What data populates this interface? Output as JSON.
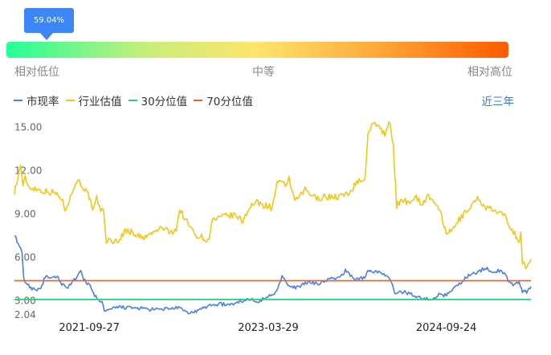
{
  "indicator": {
    "percentile_label": "59.04%",
    "percentile": 0.5904,
    "scale_labels": [
      "相对低位",
      "中等",
      "相对高位"
    ],
    "colors": [
      "#22ff99",
      "#ffe46b",
      "#ff5a00"
    ]
  },
  "legend": {
    "items": [
      {
        "label": "市现率",
        "color": "#4a7ff0"
      },
      {
        "label": "行业估值",
        "color": "#f5c518"
      },
      {
        "label": "30分位值",
        "color": "#27d07d"
      },
      {
        "label": "70分位值",
        "color": "#f2641e"
      }
    ],
    "range_label": "近三年"
  },
  "chart_data": {
    "type": "line",
    "ylim": [
      2.04,
      15.92
    ],
    "yticks": [
      "15.00",
      "12.00",
      "9.00",
      "6.00",
      "3.00",
      "2.04"
    ],
    "xticks": [
      "2021-09-27",
      "2023-03-29",
      "2024-09-24"
    ],
    "xlim": [
      "2021-02-10",
      "2025-06-10"
    ],
    "series": [
      {
        "name": "行业估值",
        "color": "#f5c518",
        "points": [
          [
            "2021-02-10",
            10.6
          ],
          [
            "2021-02-20",
            11.4
          ],
          [
            "2021-03-01",
            12.5
          ],
          [
            "2021-03-08",
            10.8
          ],
          [
            "2021-03-15",
            11.6
          ],
          [
            "2021-03-25",
            10.9
          ],
          [
            "2021-04-10",
            10.8
          ],
          [
            "2021-05-10",
            10.6
          ],
          [
            "2021-06-10",
            10.5
          ],
          [
            "2021-07-01",
            10.2
          ],
          [
            "2021-07-15",
            9.4
          ],
          [
            "2021-08-01",
            10.2
          ],
          [
            "2021-08-20",
            11.4
          ],
          [
            "2021-09-05",
            11.0
          ],
          [
            "2021-09-27",
            10.2
          ],
          [
            "2021-10-08",
            9.1
          ],
          [
            "2021-10-20",
            10.1
          ],
          [
            "2021-11-01",
            9.3
          ],
          [
            "2021-11-10",
            9.2
          ],
          [
            "2021-11-18",
            7.2
          ],
          [
            "2021-12-10",
            7.1
          ],
          [
            "2022-01-01",
            7.3
          ],
          [
            "2022-01-15",
            7.9
          ],
          [
            "2022-02-10",
            7.7
          ],
          [
            "2022-03-10",
            7.3
          ],
          [
            "2022-04-10",
            7.7
          ],
          [
            "2022-05-10",
            8.1
          ],
          [
            "2022-06-01",
            7.7
          ],
          [
            "2022-06-20",
            8.0
          ],
          [
            "2022-07-01",
            9.3
          ],
          [
            "2022-07-20",
            8.6
          ],
          [
            "2022-08-10",
            7.8
          ],
          [
            "2022-08-25",
            7.5
          ],
          [
            "2022-09-10",
            7.4
          ],
          [
            "2022-09-25",
            7.1
          ],
          [
            "2022-10-10",
            8.6
          ],
          [
            "2022-11-01",
            8.7
          ],
          [
            "2022-11-20",
            8.9
          ],
          [
            "2022-12-20",
            8.9
          ],
          [
            "2023-01-10",
            8.5
          ],
          [
            "2023-01-25",
            9.3
          ],
          [
            "2023-02-10",
            9.7
          ],
          [
            "2023-02-25",
            9.8
          ],
          [
            "2023-03-15",
            9.6
          ],
          [
            "2023-03-29",
            9.6
          ],
          [
            "2023-04-10",
            9.4
          ],
          [
            "2023-04-25",
            11.2
          ],
          [
            "2023-05-20",
            11.0
          ],
          [
            "2023-06-01",
            11.5
          ],
          [
            "2023-06-15",
            10.0
          ],
          [
            "2023-07-01",
            10.1
          ],
          [
            "2023-07-20",
            10.7
          ],
          [
            "2023-08-20",
            10.1
          ],
          [
            "2023-09-20",
            10.2
          ],
          [
            "2023-10-20",
            10.2
          ],
          [
            "2023-11-20",
            10.3
          ],
          [
            "2023-12-10",
            10.7
          ],
          [
            "2024-01-01",
            11.4
          ],
          [
            "2024-01-10",
            11.2
          ],
          [
            "2024-01-20",
            11.6
          ],
          [
            "2024-01-28",
            14.7
          ],
          [
            "2024-02-15",
            15.2
          ],
          [
            "2024-03-05",
            15.1
          ],
          [
            "2024-03-20",
            14.4
          ],
          [
            "2024-04-01",
            15.6
          ],
          [
            "2024-04-15",
            13.6
          ],
          [
            "2024-04-25",
            9.6
          ],
          [
            "2024-05-15",
            10.0
          ],
          [
            "2024-06-01",
            9.8
          ],
          [
            "2024-06-20",
            10.3
          ],
          [
            "2024-07-10",
            9.7
          ],
          [
            "2024-08-01",
            10.3
          ],
          [
            "2024-08-20",
            9.6
          ],
          [
            "2024-09-05",
            9.4
          ],
          [
            "2024-09-24",
            7.5
          ],
          [
            "2024-10-15",
            8.0
          ],
          [
            "2024-11-05",
            8.7
          ],
          [
            "2024-11-25",
            9.2
          ],
          [
            "2024-12-15",
            9.8
          ],
          [
            "2025-01-01",
            10.1
          ],
          [
            "2025-01-20",
            9.5
          ],
          [
            "2025-02-10",
            9.3
          ],
          [
            "2025-03-01",
            9.1
          ],
          [
            "2025-03-20",
            8.9
          ],
          [
            "2025-04-10",
            8.1
          ],
          [
            "2025-04-25",
            7.5
          ],
          [
            "2025-05-05",
            7.1
          ],
          [
            "2025-05-10",
            7.6
          ],
          [
            "2025-05-15",
            5.7
          ],
          [
            "2025-05-25",
            5.3
          ],
          [
            "2025-06-10",
            5.9
          ]
        ]
      },
      {
        "name": "市现率",
        "color": "#4a7ff0",
        "points": [
          [
            "2021-02-10",
            7.6
          ],
          [
            "2021-02-18",
            7.1
          ],
          [
            "2021-02-25",
            6.8
          ],
          [
            "2021-03-05",
            6.3
          ],
          [
            "2021-03-10",
            4.6
          ],
          [
            "2021-03-15",
            4.3
          ],
          [
            "2021-04-01",
            3.9
          ],
          [
            "2021-04-20",
            3.8
          ],
          [
            "2021-05-05",
            4.0
          ],
          [
            "2021-05-15",
            4.7
          ],
          [
            "2021-06-01",
            4.5
          ],
          [
            "2021-06-20",
            4.7
          ],
          [
            "2021-07-05",
            4.2
          ],
          [
            "2021-07-20",
            3.9
          ],
          [
            "2021-08-01",
            4.2
          ],
          [
            "2021-08-20",
            4.6
          ],
          [
            "2021-09-01",
            5.0
          ],
          [
            "2021-09-10",
            4.5
          ],
          [
            "2021-09-27",
            4.1
          ],
          [
            "2021-10-10",
            3.5
          ],
          [
            "2021-10-25",
            3.1
          ],
          [
            "2021-11-05",
            2.9
          ],
          [
            "2021-11-12",
            2.3
          ],
          [
            "2021-12-01",
            2.4
          ],
          [
            "2022-01-01",
            2.6
          ],
          [
            "2022-02-01",
            2.5
          ],
          [
            "2022-03-01",
            2.5
          ],
          [
            "2022-04-01",
            2.4
          ],
          [
            "2022-05-01",
            2.4
          ],
          [
            "2022-06-01",
            2.5
          ],
          [
            "2022-07-01",
            2.5
          ],
          [
            "2022-07-20",
            2.2
          ],
          [
            "2022-08-10",
            2.2
          ],
          [
            "2022-09-01",
            2.4
          ],
          [
            "2022-10-01",
            2.7
          ],
          [
            "2022-11-01",
            2.8
          ],
          [
            "2022-12-01",
            2.7
          ],
          [
            "2023-01-01",
            3.0
          ],
          [
            "2023-02-01",
            3.1
          ],
          [
            "2023-03-01",
            3.0
          ],
          [
            "2023-03-29",
            3.3
          ],
          [
            "2023-04-20",
            3.6
          ],
          [
            "2023-05-10",
            4.7
          ],
          [
            "2023-05-25",
            4.2
          ],
          [
            "2023-06-10",
            3.9
          ],
          [
            "2023-07-01",
            4.0
          ],
          [
            "2023-08-01",
            4.3
          ],
          [
            "2023-09-01",
            4.2
          ],
          [
            "2023-10-01",
            4.5
          ],
          [
            "2023-11-01",
            4.6
          ],
          [
            "2023-11-20",
            5.1
          ],
          [
            "2023-12-20",
            4.5
          ],
          [
            "2024-01-15",
            4.6
          ],
          [
            "2024-02-01",
            5.1
          ],
          [
            "2024-03-01",
            5.0
          ],
          [
            "2024-04-01",
            4.6
          ],
          [
            "2024-04-20",
            3.6
          ],
          [
            "2024-05-20",
            3.6
          ],
          [
            "2024-06-20",
            3.4
          ],
          [
            "2024-07-15",
            3.1
          ],
          [
            "2024-08-15",
            3.2
          ],
          [
            "2024-09-01",
            3.4
          ],
          [
            "2024-09-24",
            3.4
          ],
          [
            "2024-10-15",
            3.9
          ],
          [
            "2024-11-10",
            4.3
          ],
          [
            "2024-12-01",
            4.8
          ],
          [
            "2025-01-01",
            5.0
          ],
          [
            "2025-01-20",
            5.3
          ],
          [
            "2025-02-10",
            5.0
          ],
          [
            "2025-03-01",
            5.1
          ],
          [
            "2025-03-20",
            4.9
          ],
          [
            "2025-04-05",
            4.3
          ],
          [
            "2025-04-20",
            4.1
          ],
          [
            "2025-05-05",
            4.3
          ],
          [
            "2025-05-15",
            3.7
          ],
          [
            "2025-05-28",
            3.6
          ],
          [
            "2025-06-10",
            4.0
          ]
        ]
      },
      {
        "name": "30分位值",
        "color": "#27d07d",
        "value": 3.1
      },
      {
        "name": "70分位值",
        "color": "#f2641e",
        "value": 4.4
      }
    ]
  }
}
